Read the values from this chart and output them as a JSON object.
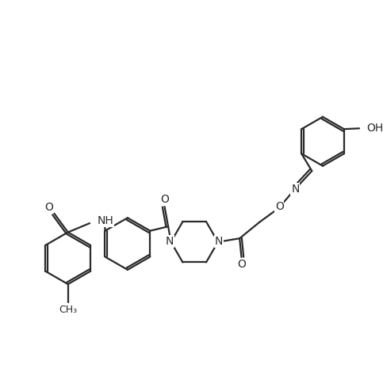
{
  "background_color": "#ffffff",
  "line_color": "#2a2a2a",
  "line_width": 1.6,
  "font_size": 10,
  "figsize": [
    4.83,
    4.84
  ],
  "dpi": 100,
  "xlim": [
    0,
    10
  ],
  "ylim": [
    0,
    10
  ]
}
